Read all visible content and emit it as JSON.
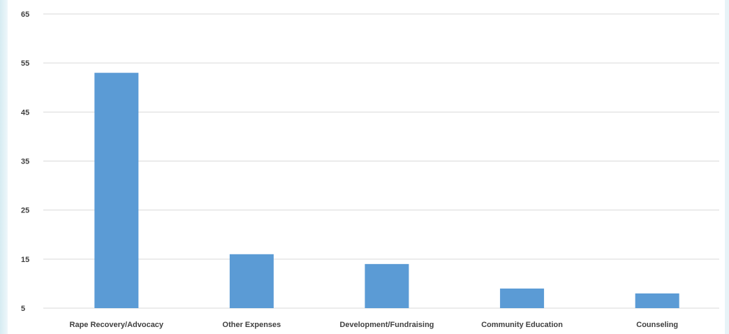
{
  "chart_data": {
    "type": "bar",
    "title": "",
    "xlabel": "",
    "ylabel": "",
    "categories": [
      "Rape Recovery/Advocacy",
      "Other Expenses",
      "Development/Fundraising",
      "Community Education",
      "Counseling"
    ],
    "values": [
      53,
      16,
      14,
      9,
      8
    ],
    "ylim": [
      5,
      65
    ],
    "yticks": [
      5,
      15,
      25,
      35,
      45,
      55,
      65
    ],
    "grid": true,
    "legend": "none",
    "bar_color": "#5b9bd5",
    "grid_color": "#d9d9d9"
  }
}
